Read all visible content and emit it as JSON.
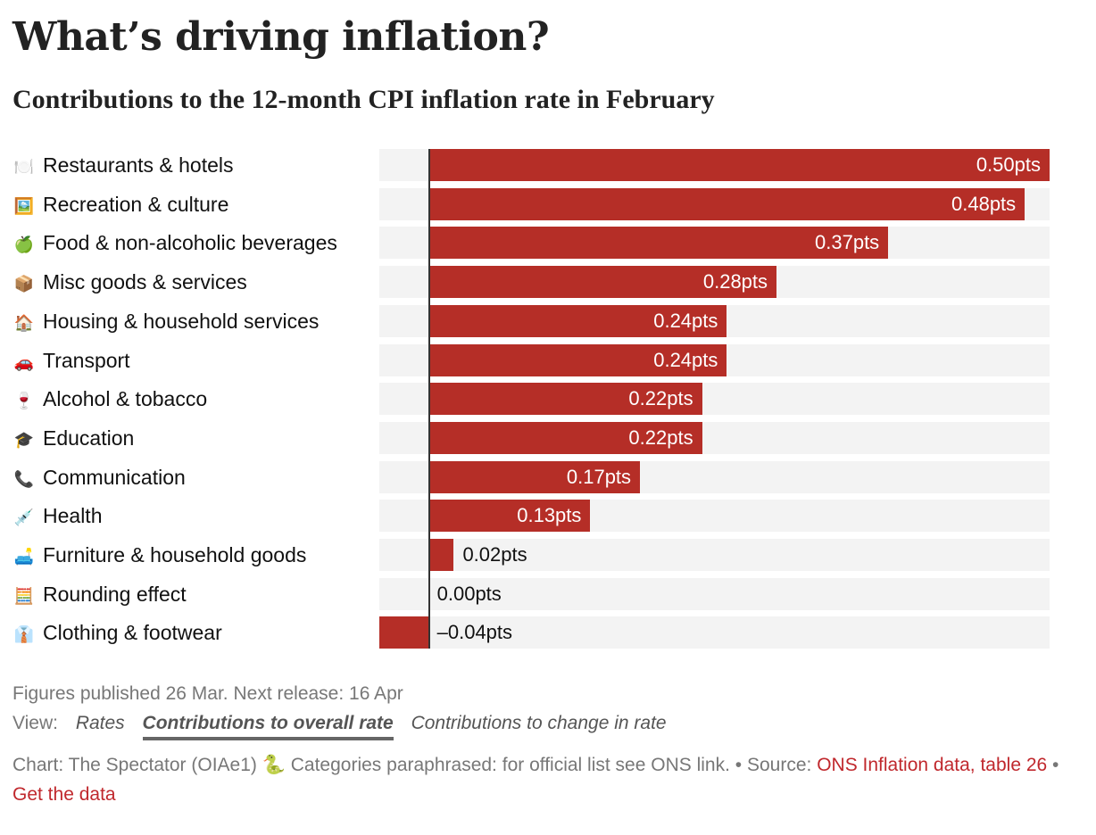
{
  "header": {
    "title": "What’s driving inflation?",
    "subtitle": "Contributions to the 12-month CPI inflation rate in February"
  },
  "colors": {
    "bar": "#b52e27",
    "track": "#f3f3f3",
    "axis": "#333333",
    "link": "#c0282d"
  },
  "chart_data": {
    "type": "bar",
    "orientation": "horizontal",
    "title": "What’s driving inflation?",
    "subtitle": "Contributions to the 12-month CPI inflation rate in February",
    "xlabel": "",
    "ylabel": "",
    "unit": "pts",
    "xlim": [
      -0.04,
      0.5
    ],
    "grid": false,
    "categories": [
      "Restaurants & hotels",
      "Recreation & culture",
      "Food & non-alcoholic beverages",
      "Misc goods & services",
      "Housing & household services",
      "Transport",
      "Alcohol & tobacco",
      "Education",
      "Communication",
      "Health",
      "Furniture & household goods",
      "Rounding effect",
      "Clothing & footwear"
    ],
    "icons": [
      "fork-knife-plate-icon",
      "framed-picture-icon",
      "green-apple-icon",
      "package-icon",
      "house-icon",
      "car-icon",
      "wine-glass-icon",
      "graduation-cap-icon",
      "telephone-icon",
      "syringe-icon",
      "couch-lamp-icon",
      "abacus-icon",
      "shirt-tie-icon"
    ],
    "emoji": [
      "🍽️",
      "🖼️",
      "🍏",
      "📦",
      "🏠",
      "🚗",
      "🍷",
      "🎓",
      "📞",
      "💉",
      "🛋️",
      "🧮",
      "👔"
    ],
    "values": [
      0.5,
      0.48,
      0.37,
      0.28,
      0.24,
      0.24,
      0.22,
      0.22,
      0.17,
      0.13,
      0.02,
      0.0,
      -0.04
    ],
    "labels": [
      "0.50pts",
      "0.48pts",
      "0.37pts",
      "0.28pts",
      "0.24pts",
      "0.24pts",
      "0.22pts",
      "0.22pts",
      "0.17pts",
      "0.13pts",
      "0.02pts",
      "0.00pts",
      "–0.04pts"
    ]
  },
  "footer": {
    "published": "Figures published 26 Mar. Next release: 16 Apr",
    "view_label": "View:",
    "view_options": [
      {
        "label": "Rates",
        "active": false
      },
      {
        "label": "Contributions to overall rate",
        "active": true
      },
      {
        "label": "Contributions to change in rate",
        "active": false
      }
    ],
    "credit": "Chart: The Spectator (OIAe1)",
    "credit_icon": "🐍",
    "note": "Categories paraphrased: for official list see ONS link. •",
    "source_label": "Source:",
    "source_link": "ONS Inflation data, table 26",
    "separator": "•",
    "data_link": "Get the data"
  }
}
